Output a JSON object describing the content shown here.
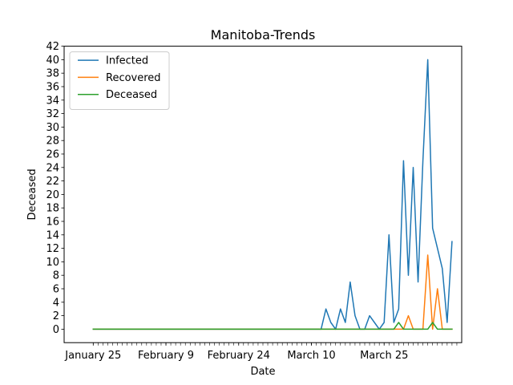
{
  "chart_data": {
    "type": "line",
    "title": "Manitoba-Trends",
    "xlabel": "Date",
    "ylabel": "Deceased",
    "ylim": [
      -2,
      42
    ],
    "yticks": [
      0,
      2,
      4,
      6,
      8,
      10,
      12,
      14,
      16,
      18,
      20,
      22,
      24,
      26,
      28,
      30,
      32,
      34,
      36,
      38,
      40,
      42
    ],
    "x_start": "January 25",
    "x_tick_labels": [
      {
        "day": 0,
        "label": "January 25"
      },
      {
        "day": 15,
        "label": "February 9"
      },
      {
        "day": 30,
        "label": "February 24"
      },
      {
        "day": 45,
        "label": "March 10"
      },
      {
        "day": 60,
        "label": "March 25"
      }
    ],
    "x_minor_tick_every_days": 1,
    "x_range_days": [
      -6,
      76
    ],
    "legend": {
      "position": "top-left",
      "entries": [
        "Infected",
        "Recovered",
        "Deceased"
      ]
    },
    "grid": false,
    "series": [
      {
        "name": "Infected",
        "color": "#1f77b4",
        "points": [
          [
            0,
            0
          ],
          [
            47,
            0
          ],
          [
            48,
            3
          ],
          [
            49,
            1
          ],
          [
            50,
            0
          ],
          [
            51,
            3
          ],
          [
            52,
            1
          ],
          [
            53,
            7
          ],
          [
            54,
            2
          ],
          [
            55,
            0
          ],
          [
            56,
            0
          ],
          [
            57,
            2
          ],
          [
            58,
            1
          ],
          [
            59,
            0
          ],
          [
            60,
            1
          ],
          [
            61,
            14
          ],
          [
            62,
            1
          ],
          [
            63,
            3
          ],
          [
            64,
            25
          ],
          [
            65,
            8
          ],
          [
            66,
            24
          ],
          [
            67,
            7
          ],
          [
            68,
            25
          ],
          [
            69,
            40
          ],
          [
            70,
            15
          ],
          [
            71,
            12
          ],
          [
            72,
            9
          ],
          [
            73,
            1
          ],
          [
            74,
            13
          ]
        ]
      },
      {
        "name": "Recovered",
        "color": "#ff7f0e",
        "points": [
          [
            0,
            0
          ],
          [
            64,
            0
          ],
          [
            65,
            2
          ],
          [
            66,
            0
          ],
          [
            68,
            0
          ],
          [
            69,
            11
          ],
          [
            70,
            0
          ],
          [
            71,
            6
          ],
          [
            72,
            0
          ],
          [
            74,
            0
          ]
        ]
      },
      {
        "name": "Deceased",
        "color": "#2ca02c",
        "points": [
          [
            0,
            0
          ],
          [
            62,
            0
          ],
          [
            63,
            1
          ],
          [
            64,
            0
          ],
          [
            69,
            0
          ],
          [
            70,
            1
          ],
          [
            71,
            0
          ],
          [
            74,
            0
          ]
        ]
      }
    ]
  }
}
